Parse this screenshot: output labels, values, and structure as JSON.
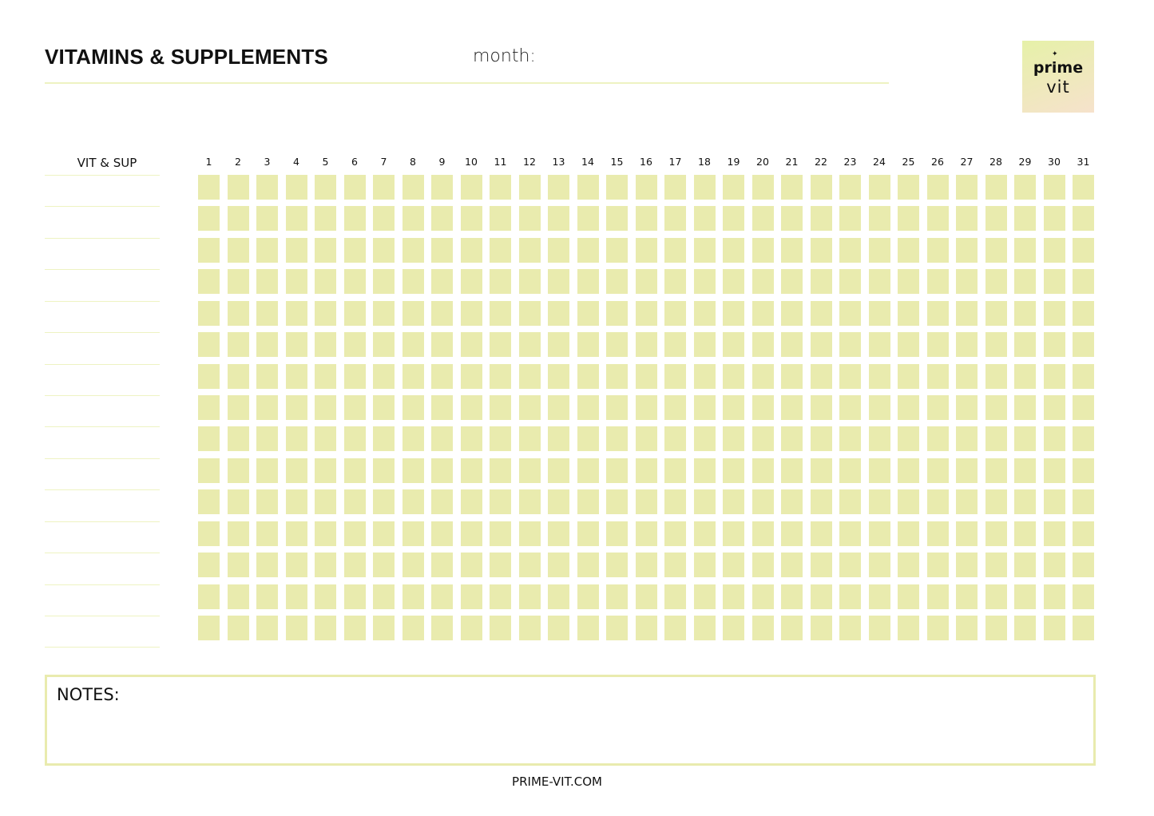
{
  "header": {
    "title": "VITAMINS & SUPPLEMENTS",
    "month_label": "month:"
  },
  "logo": {
    "line1": "prime",
    "line2": "vit"
  },
  "tracker": {
    "column_label": "VIT & SUP",
    "days": [
      "1",
      "2",
      "3",
      "4",
      "5",
      "6",
      "7",
      "8",
      "9",
      "10",
      "11",
      "12",
      "13",
      "14",
      "15",
      "16",
      "17",
      "18",
      "19",
      "20",
      "21",
      "22",
      "23",
      "24",
      "25",
      "26",
      "27",
      "28",
      "29",
      "30",
      "31"
    ],
    "row_count": 15,
    "cell_color": "#e9ebae"
  },
  "notes": {
    "label": "NOTES:"
  },
  "footer": {
    "url": "PRIME-VIT.COM"
  }
}
